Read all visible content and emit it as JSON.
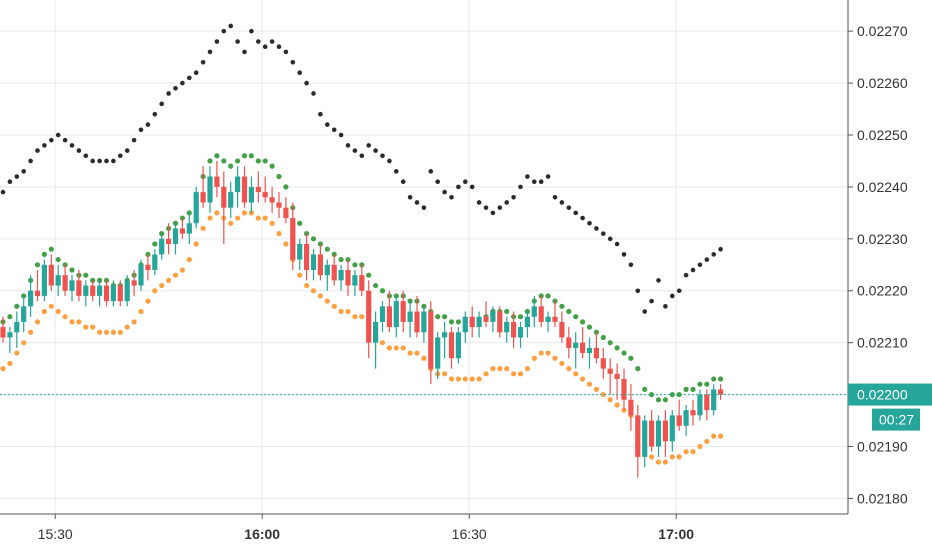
{
  "chart_data": {
    "type": "candlestick",
    "title": "",
    "xlabel": "",
    "ylabel": "",
    "ylim": [
      0.02177,
      0.02276
    ],
    "y_ticks": [
      "0.02180",
      "0.02190",
      "0.02200",
      "0.02210",
      "0.02220",
      "0.02230",
      "0.02240",
      "0.02250",
      "0.02260",
      "0.02270"
    ],
    "x_ticks": [
      {
        "label": "15:30",
        "t": 30,
        "bold": false
      },
      {
        "label": "16:00",
        "t": 60,
        "bold": true
      },
      {
        "label": "16:30",
        "t": 90,
        "bold": false
      },
      {
        "label": "17:00",
        "t": 120,
        "bold": true
      }
    ],
    "grid": true,
    "time_start": "15:22",
    "candle_interval_minutes": 1,
    "last_price": {
      "value": 0.022,
      "label": "0.02200",
      "countdown": "00:27"
    },
    "colors": {
      "up": "#26a69a",
      "down": "#ef5350",
      "upper_band": "#43a047",
      "lower_band": "#ffa040",
      "trailing": "#2b2b2b",
      "last_price": "#26a69a",
      "grid": "#e6e9ee",
      "axis": "#555555"
    },
    "candles": [
      [
        0.02213,
        0.02215,
        0.0221,
        0.02211
      ],
      [
        0.02211,
        0.02213,
        0.02208,
        0.02212
      ],
      [
        0.02212,
        0.02216,
        0.02209,
        0.02214
      ],
      [
        0.02214,
        0.02219,
        0.02212,
        0.02217
      ],
      [
        0.02217,
        0.02223,
        0.02215,
        0.0222
      ],
      [
        0.0222,
        0.02224,
        0.02218,
        0.02219
      ],
      [
        0.02219,
        0.02226,
        0.02218,
        0.02225
      ],
      [
        0.02225,
        0.02227,
        0.0222,
        0.02221
      ],
      [
        0.02221,
        0.02225,
        0.02219,
        0.02223
      ],
      [
        0.02223,
        0.02225,
        0.02219,
        0.0222
      ],
      [
        0.0222,
        0.02223,
        0.02218,
        0.02222
      ],
      [
        0.02222,
        0.02224,
        0.02218,
        0.02219
      ],
      [
        0.02219,
        0.02222,
        0.02217,
        0.02221
      ],
      [
        0.02221,
        0.02222,
        0.02218,
        0.02219
      ],
      [
        0.02219,
        0.02222,
        0.02217,
        0.02221
      ],
      [
        0.02221,
        0.02222,
        0.02217,
        0.02218
      ],
      [
        0.02218,
        0.02222,
        0.02217,
        0.02221
      ],
      [
        0.02221,
        0.02222,
        0.02217,
        0.02218
      ],
      [
        0.02218,
        0.02223,
        0.02217,
        0.02222
      ],
      [
        0.02222,
        0.02224,
        0.02219,
        0.02221
      ],
      [
        0.02221,
        0.02226,
        0.0222,
        0.02225
      ],
      [
        0.02225,
        0.02227,
        0.02222,
        0.02224
      ],
      [
        0.02224,
        0.02228,
        0.02223,
        0.02227
      ],
      [
        0.02227,
        0.02231,
        0.02226,
        0.0223
      ],
      [
        0.0223,
        0.02233,
        0.02227,
        0.02229
      ],
      [
        0.02229,
        0.02233,
        0.02227,
        0.02232
      ],
      [
        0.02232,
        0.02234,
        0.0223,
        0.02231
      ],
      [
        0.02231,
        0.02235,
        0.02229,
        0.02233
      ],
      [
        0.02233,
        0.0224,
        0.02232,
        0.02239
      ],
      [
        0.02239,
        0.02244,
        0.02236,
        0.02237
      ],
      [
        0.02237,
        0.02244,
        0.02235,
        0.02242
      ],
      [
        0.02242,
        0.02245,
        0.02238,
        0.0224
      ],
      [
        0.0224,
        0.02243,
        0.02229,
        0.02236
      ],
      [
        0.02236,
        0.02241,
        0.02234,
        0.02239
      ],
      [
        0.02239,
        0.02244,
        0.02236,
        0.02242
      ],
      [
        0.02242,
        0.02244,
        0.02236,
        0.02237
      ],
      [
        0.02237,
        0.02242,
        0.02235,
        0.0224
      ],
      [
        0.0224,
        0.02243,
        0.02237,
        0.02239
      ],
      [
        0.02239,
        0.02242,
        0.02237,
        0.02238
      ],
      [
        0.02238,
        0.0224,
        0.02235,
        0.02237
      ],
      [
        0.02237,
        0.02239,
        0.02234,
        0.02236
      ],
      [
        0.02236,
        0.02238,
        0.02233,
        0.02234
      ],
      [
        0.02234,
        0.02237,
        0.02224,
        0.02226
      ],
      [
        0.02226,
        0.0223,
        0.02224,
        0.02229
      ],
      [
        0.02229,
        0.02231,
        0.02222,
        0.02224
      ],
      [
        0.02224,
        0.02228,
        0.02222,
        0.02227
      ],
      [
        0.02227,
        0.02229,
        0.02222,
        0.02223
      ],
      [
        0.02223,
        0.02226,
        0.0222,
        0.02225
      ],
      [
        0.02225,
        0.02227,
        0.02221,
        0.02222
      ],
      [
        0.02222,
        0.02225,
        0.0222,
        0.02224
      ],
      [
        0.02224,
        0.02226,
        0.02219,
        0.02221
      ],
      [
        0.02221,
        0.02224,
        0.02219,
        0.02223
      ],
      [
        0.02223,
        0.02225,
        0.02219,
        0.0222
      ],
      [
        0.0222,
        0.02222,
        0.02207,
        0.0221
      ],
      [
        0.0221,
        0.02216,
        0.02205,
        0.02214
      ],
      [
        0.02214,
        0.02218,
        0.02212,
        0.02217
      ],
      [
        0.02217,
        0.0222,
        0.02212,
        0.02213
      ],
      [
        0.02213,
        0.02219,
        0.02211,
        0.02218
      ],
      [
        0.02218,
        0.0222,
        0.02212,
        0.02214
      ],
      [
        0.02214,
        0.02218,
        0.02211,
        0.02216
      ],
      [
        0.02216,
        0.02219,
        0.02211,
        0.02212
      ],
      [
        0.02212,
        0.02217,
        0.0221,
        0.02216
      ],
      [
        0.02216,
        0.02218,
        0.02202,
        0.02205
      ],
      [
        0.02205,
        0.02212,
        0.02203,
        0.02211
      ],
      [
        0.02211,
        0.02214,
        0.02207,
        0.02212
      ],
      [
        0.02212,
        0.02213,
        0.02205,
        0.02207
      ],
      [
        0.02207,
        0.02213,
        0.02206,
        0.02212
      ],
      [
        0.02212,
        0.02216,
        0.0221,
        0.02215
      ],
      [
        0.02215,
        0.02217,
        0.02211,
        0.02213
      ],
      [
        0.02213,
        0.02216,
        0.02211,
        0.02215
      ],
      [
        0.02215,
        0.02218,
        0.02213,
        0.02214
      ],
      [
        0.02214,
        0.02217,
        0.02212,
        0.02216
      ],
      [
        0.02216,
        0.02217,
        0.02211,
        0.02212
      ],
      [
        0.02212,
        0.02215,
        0.0221,
        0.02214
      ],
      [
        0.02214,
        0.02216,
        0.02209,
        0.02211
      ],
      [
        0.02211,
        0.02214,
        0.02209,
        0.02213
      ],
      [
        0.02213,
        0.02216,
        0.02211,
        0.02215
      ],
      [
        0.02215,
        0.02219,
        0.02213,
        0.02217
      ],
      [
        0.02217,
        0.02219,
        0.02213,
        0.02214
      ],
      [
        0.02214,
        0.02216,
        0.02212,
        0.02215
      ],
      [
        0.02215,
        0.02218,
        0.02213,
        0.02214
      ],
      [
        0.02214,
        0.02216,
        0.0221,
        0.02211
      ],
      [
        0.02211,
        0.02213,
        0.02207,
        0.02209
      ],
      [
        0.02209,
        0.02212,
        0.02205,
        0.0221
      ],
      [
        0.0221,
        0.02213,
        0.02207,
        0.02208
      ],
      [
        0.02208,
        0.02211,
        0.02205,
        0.02209
      ],
      [
        0.02209,
        0.02212,
        0.02206,
        0.02207
      ],
      [
        0.02207,
        0.02209,
        0.02203,
        0.02205
      ],
      [
        0.02205,
        0.02207,
        0.022,
        0.02204
      ],
      [
        0.02204,
        0.02206,
        0.02199,
        0.02203
      ],
      [
        0.02203,
        0.02205,
        0.02197,
        0.02199
      ],
      [
        0.02199,
        0.02202,
        0.02193,
        0.02196
      ],
      [
        0.02196,
        0.02198,
        0.02184,
        0.02188
      ],
      [
        0.02188,
        0.02196,
        0.02186,
        0.02195
      ],
      [
        0.02195,
        0.02197,
        0.02189,
        0.0219
      ],
      [
        0.0219,
        0.02196,
        0.02188,
        0.02195
      ],
      [
        0.02195,
        0.02197,
        0.02188,
        0.02191
      ],
      [
        0.02191,
        0.02197,
        0.02189,
        0.02196
      ],
      [
        0.02196,
        0.02199,
        0.02193,
        0.02194
      ],
      [
        0.02194,
        0.02198,
        0.02192,
        0.02197
      ],
      [
        0.02197,
        0.02199,
        0.02194,
        0.02196
      ],
      [
        0.02196,
        0.02201,
        0.02195,
        0.022
      ],
      [
        0.022,
        0.02201,
        0.02195,
        0.02197
      ],
      [
        0.02197,
        0.02202,
        0.02196,
        0.02201
      ],
      [
        0.02201,
        0.02202,
        0.02199,
        0.022
      ]
    ],
    "upper_band": [
      0.02214,
      0.02215,
      0.02217,
      0.02219,
      0.02222,
      0.02225,
      0.02227,
      0.02228,
      0.02226,
      0.02225,
      0.02224,
      0.02223,
      0.02223,
      0.02222,
      0.02222,
      0.02222,
      0.02221,
      0.02221,
      0.02222,
      0.02223,
      0.02225,
      0.02227,
      0.02229,
      0.02231,
      0.02232,
      0.02233,
      0.02234,
      0.02235,
      0.02238,
      0.02242,
      0.02245,
      0.02246,
      0.02245,
      0.02244,
      0.02245,
      0.02246,
      0.02246,
      0.02245,
      0.02245,
      0.02244,
      0.02242,
      0.0224,
      0.02236,
      0.02233,
      0.02231,
      0.0223,
      0.02229,
      0.02228,
      0.02227,
      0.02226,
      0.02226,
      0.02225,
      0.02225,
      0.02223,
      0.02221,
      0.0222,
      0.02219,
      0.02219,
      0.02219,
      0.02218,
      0.02218,
      0.02217,
      0.02216,
      0.02215,
      0.02215,
      0.02214,
      0.02214,
      0.02214,
      0.02214,
      0.02214,
      0.02215,
      0.02216,
      0.02216,
      0.02216,
      0.02215,
      0.02215,
      0.02216,
      0.02218,
      0.02219,
      0.02219,
      0.02218,
      0.02217,
      0.02216,
      0.02215,
      0.02214,
      0.02213,
      0.02212,
      0.02211,
      0.0221,
      0.02209,
      0.02208,
      0.02207,
      0.02205,
      0.02201,
      0.022,
      0.02199,
      0.02199,
      0.022,
      0.022,
      0.02201,
      0.02201,
      0.02202,
      0.02202,
      0.02203,
      0.02203
    ],
    "lower_band": [
      0.02205,
      0.02206,
      0.02208,
      0.0221,
      0.02212,
      0.02214,
      0.02216,
      0.02217,
      0.02216,
      0.02215,
      0.02214,
      0.02214,
      0.02213,
      0.02213,
      0.02212,
      0.02212,
      0.02212,
      0.02212,
      0.02213,
      0.02214,
      0.02216,
      0.02218,
      0.0222,
      0.02221,
      0.02222,
      0.02223,
      0.02224,
      0.02226,
      0.02229,
      0.02232,
      0.02234,
      0.02235,
      0.02234,
      0.02233,
      0.02234,
      0.02235,
      0.02235,
      0.02234,
      0.02234,
      0.02233,
      0.02231,
      0.02229,
      0.02226,
      0.02223,
      0.02221,
      0.0222,
      0.02219,
      0.02218,
      0.02217,
      0.02216,
      0.02216,
      0.02215,
      0.02215,
      0.02213,
      0.02211,
      0.0221,
      0.02209,
      0.02209,
      0.02209,
      0.02208,
      0.02208,
      0.02207,
      0.02205,
      0.02204,
      0.02204,
      0.02203,
      0.02203,
      0.02203,
      0.02203,
      0.02203,
      0.02204,
      0.02205,
      0.02205,
      0.02205,
      0.02204,
      0.02204,
      0.02205,
      0.02207,
      0.02208,
      0.02208,
      0.02207,
      0.02206,
      0.02205,
      0.02204,
      0.02203,
      0.02202,
      0.02201,
      0.022,
      0.02199,
      0.02198,
      0.02197,
      0.02196,
      0.02194,
      0.0219,
      0.02188,
      0.02187,
      0.02187,
      0.02188,
      0.02188,
      0.02189,
      0.02189,
      0.0219,
      0.02191,
      0.02192,
      0.02192
    ],
    "trailing": [
      0.02239,
      0.02241,
      0.02242,
      0.02243,
      0.02245,
      0.02247,
      0.02248,
      0.02249,
      0.0225,
      0.02249,
      0.02248,
      0.02247,
      0.02246,
      0.02245,
      0.02245,
      0.02245,
      0.02245,
      0.02246,
      0.02247,
      0.02249,
      0.02251,
      0.02252,
      0.02254,
      0.02256,
      0.02258,
      0.02259,
      0.0226,
      0.02261,
      0.02262,
      0.02264,
      0.02266,
      0.02268,
      0.0227,
      0.02271,
      0.02268,
      0.02266,
      0.0227,
      0.02268,
      0.02267,
      0.02268,
      0.02267,
      0.02266,
      0.02264,
      0.02262,
      0.0226,
      0.02258,
      0.02254,
      0.02252,
      0.02251,
      0.0225,
      0.02248,
      0.02247,
      0.02246,
      0.02248,
      0.02247,
      0.02246,
      0.02245,
      0.02243,
      0.02241,
      0.02238,
      0.02237,
      0.02236,
      0.02243,
      0.02241,
      0.02239,
      0.02238,
      0.0224,
      0.02241,
      0.0224,
      0.02237,
      0.02236,
      0.02235,
      0.02236,
      0.02237,
      0.02238,
      0.0224,
      0.02242,
      0.02241,
      0.02241,
      0.02242,
      0.02238,
      0.02237,
      0.02236,
      0.02235,
      0.02234,
      0.02233,
      0.02232,
      0.02231,
      0.0223,
      0.02229,
      0.02227,
      0.02225,
      0.0222,
      0.02216,
      0.02218,
      0.02222,
      0.02217,
      0.02219,
      0.0222,
      0.02223,
      0.02224,
      0.02225,
      0.02226,
      0.02227,
      0.02228
    ]
  }
}
